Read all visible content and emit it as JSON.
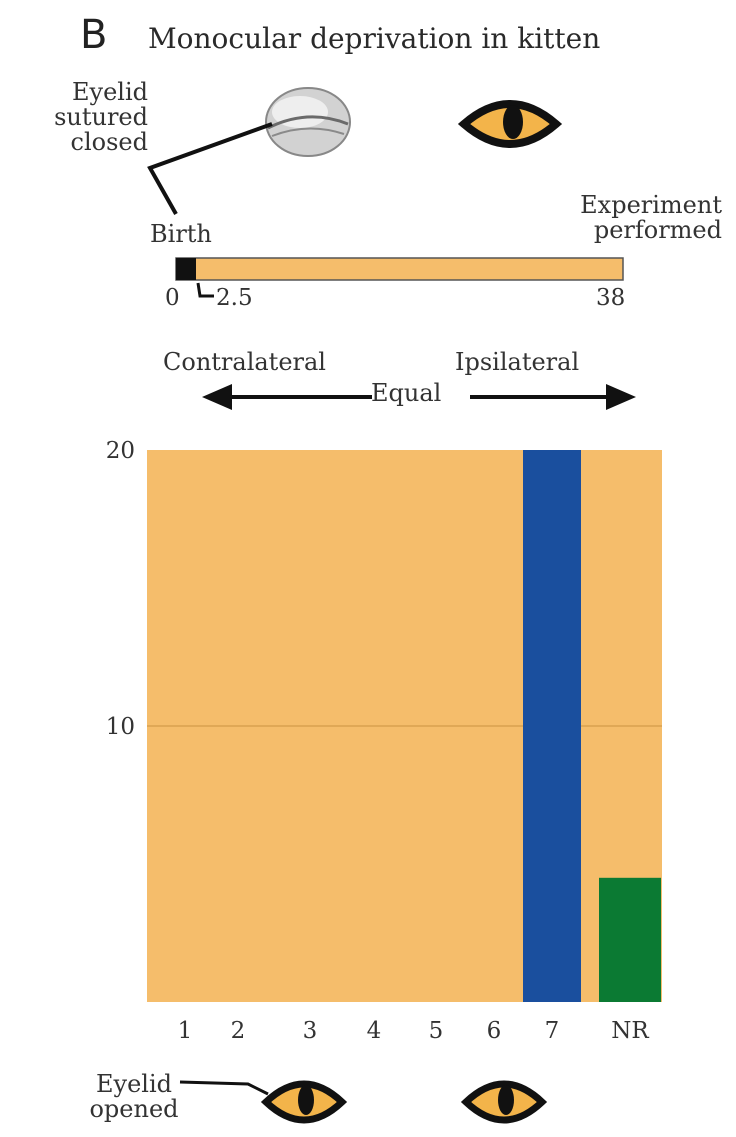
{
  "panel": {
    "letter": "B",
    "title": "Monocular deprivation in kitten"
  },
  "timeline": {
    "sutured_label": [
      "Eyelid",
      "sutured",
      "closed"
    ],
    "birth_label": "Birth",
    "experiment_label": [
      "Experiment",
      "performed"
    ],
    "tick_start": "0",
    "tick_mid": "2.5",
    "tick_end": "38"
  },
  "dominance": {
    "left": "Contralateral",
    "center": "Equal",
    "right": "Ipsilateral"
  },
  "opened_label": [
    "Eyelid",
    "opened"
  ],
  "colors": {
    "background_fill": "#f5bd6b",
    "blue": "#1a4f9e",
    "green": "#0b7a33",
    "bar_black": "#111111"
  },
  "icons": [
    "closed-eye-icon",
    "open-eye-icon"
  ],
  "chart_data": {
    "type": "bar",
    "categories": [
      "1",
      "2",
      "3",
      "4",
      "5",
      "6",
      "7",
      "NR"
    ],
    "values": [
      0,
      0,
      0,
      0,
      0,
      0,
      20,
      4.5
    ],
    "ylim": [
      0,
      20
    ],
    "y_ticks": [
      "10",
      "20"
    ],
    "grid": true
  }
}
